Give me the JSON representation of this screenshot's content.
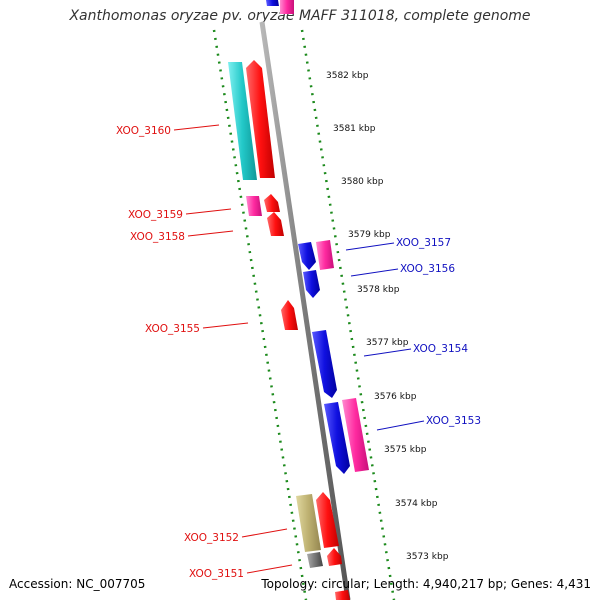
{
  "title": "Xanthomonas oryzae pv. oryzae MAFF 311018, complete genome",
  "footer": {
    "accession": "Accession: NC_007705",
    "summary": "Topology: circular; Length: 4,940,217 bp; Genes: 4,431"
  },
  "scale_ticks": [
    "3582 kbp",
    "3581 kbp",
    "3580 kbp",
    "3579 kbp",
    "3578 kbp",
    "3577 kbp",
    "3576 kbp",
    "3575 kbp",
    "3574 kbp",
    "3573 kbp"
  ],
  "gene_labels_left": [
    "XOO_3160",
    "XOO_3159",
    "XOO_3158",
    "XOO_3155",
    "XOO_3152",
    "XOO_3151"
  ],
  "gene_labels_right": [
    "XOO_3157",
    "XOO_3156",
    "XOO_3154",
    "XOO_3153"
  ],
  "colors": {
    "label_left": "#e01010",
    "label_right": "#1010c0",
    "backbone": "#8a8a8a",
    "guide": "#1c8a1c",
    "cyan": "#22c8c8",
    "red": "#ff1010",
    "magenta": "#ff2aa0",
    "blue": "#1010e0",
    "olive": "#bdb070",
    "gray": "#777777"
  }
}
